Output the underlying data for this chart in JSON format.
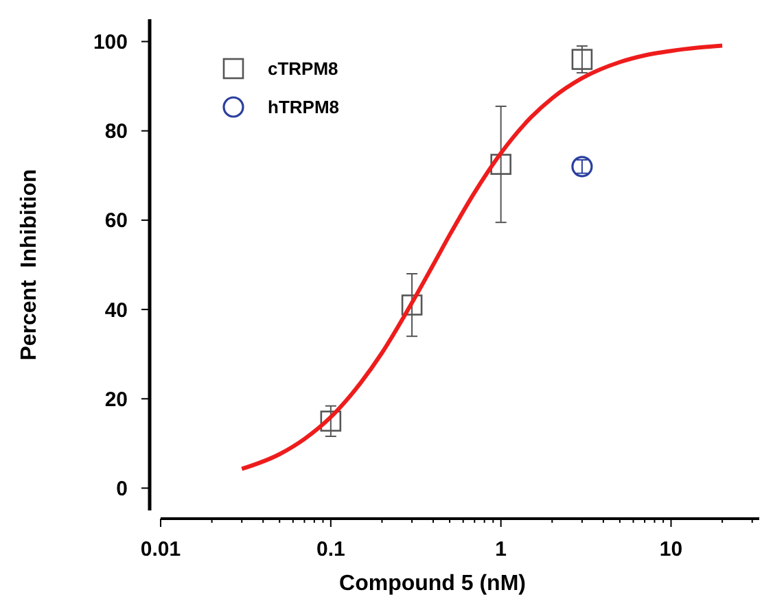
{
  "chart_data": {
    "type": "scatter",
    "xlabel": "Compound 5 (nM)",
    "ylabel": "Percent  Inhibition",
    "log": "x",
    "xlim": [
      0.01,
      33
    ],
    "xticks": [
      0.01,
      {
        "value": 0.02,
        "label": null
      },
      {
        "value": 0.03,
        "label": null
      },
      {
        "value": 0.04,
        "label": null
      },
      {
        "value": 0.05,
        "label": null
      },
      {
        "value": 0.06,
        "label": null
      },
      {
        "value": 0.07,
        "label": null
      },
      {
        "value": 0.08,
        "label": null
      },
      {
        "value": 0.09,
        "label": null
      },
      0.1,
      {
        "value": 0.2,
        "label": null
      },
      {
        "value": 0.3,
        "label": null
      },
      {
        "value": 0.4,
        "label": null
      },
      {
        "value": 0.5,
        "label": null
      },
      {
        "value": 0.6,
        "label": null
      },
      {
        "value": 0.7,
        "label": null
      },
      {
        "value": 0.8,
        "label": null
      },
      {
        "value": 0.9,
        "label": null
      },
      1,
      {
        "value": 2,
        "label": null
      },
      {
        "value": 3,
        "label": null
      },
      {
        "value": 4,
        "label": null
      },
      {
        "value": 5,
        "label": null
      },
      {
        "value": 6,
        "label": null
      },
      {
        "value": 7,
        "label": null
      },
      {
        "value": 8,
        "label": null
      },
      {
        "value": 9,
        "label": null
      },
      10,
      {
        "value": 20,
        "label": null
      },
      {
        "value": 30,
        "label": null
      }
    ],
    "ylim": [
      -5,
      105
    ],
    "yticks": [
      0,
      20,
      40,
      60,
      80,
      100
    ],
    "grid": false,
    "legend": "top left",
    "series": [
      {
        "name": "cTRPM8",
        "marker": "square",
        "color": "#555555",
        "x": [
          0.1,
          0.3,
          1,
          3
        ],
        "values": [
          15,
          41,
          72.5,
          96
        ],
        "errors": [
          3.4,
          7,
          13,
          3
        ]
      },
      {
        "name": "hTRPM8",
        "marker": "circle",
        "color": "#2b3f9e",
        "x": [
          3
        ],
        "values": [
          72
        ],
        "errors": [
          1.5
        ]
      },
      {
        "type": "line",
        "color": "#ee1c1c",
        "marker": "none",
        "line_style": "solid",
        "x": [
          0.03,
          0.05,
          0.07,
          0.1,
          0.15,
          0.2,
          0.3,
          0.4,
          0.5,
          0.7,
          1,
          1.5,
          2,
          3,
          5,
          7,
          10,
          15,
          20
        ],
        "values": [
          4.3,
          7.6,
          11,
          15.9,
          23.6,
          30.3,
          41.5,
          50,
          56.7,
          66.2,
          75,
          83,
          87.3,
          91.8,
          95.4,
          96.9,
          97.9,
          98.7,
          99.1
        ]
      }
    ]
  }
}
